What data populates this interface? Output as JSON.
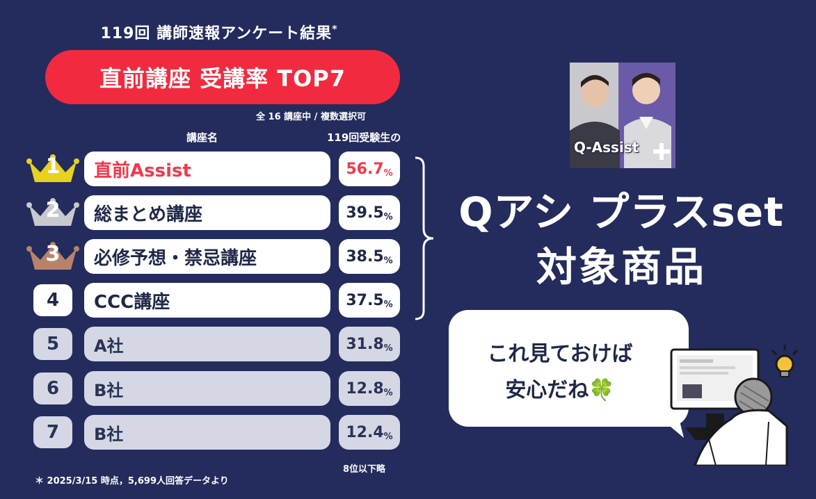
{
  "header": {
    "survey_title": "119回 講師速報アンケート結果",
    "asterisk": "*",
    "main_title": "直前講座 受講率 TOP7",
    "subnote": "全 16 講座中 / 複数選択可",
    "col_name": "講座名",
    "col_rate": "119回受験生の"
  },
  "ranking": [
    {
      "rank": "1",
      "name": "直前Assist",
      "rate": "56.7",
      "unit": "%"
    },
    {
      "rank": "2",
      "name": "総まとめ講座",
      "rate": "39.5",
      "unit": "%"
    },
    {
      "rank": "3",
      "name": "必修予想・禁忌講座",
      "rate": "38.5",
      "unit": "%"
    },
    {
      "rank": "4",
      "name": "CCC講座",
      "rate": "37.5",
      "unit": "%"
    },
    {
      "rank": "5",
      "name": "A社",
      "rate": "31.8",
      "unit": "%"
    },
    {
      "rank": "6",
      "name": "B社",
      "rate": "12.8",
      "unit": "%"
    },
    {
      "rank": "7",
      "name": "B社",
      "rate": "12.4",
      "unit": "%"
    }
  ],
  "footer": {
    "footnote": "＊ 2025/3/15 時点，5,699人回答データより",
    "omit": "8位以下略"
  },
  "promo": {
    "product_label": "Q-Assist",
    "badge_text": "プラス",
    "headline_1": "Qアシ プラスset",
    "headline_2": "対象商品",
    "bubble_line_1": "これ見ておけば",
    "bubble_line_2": "安心だね",
    "bubble_emoji": "🍀"
  },
  "colors": {
    "background": "#232c5c",
    "accent_red": "#f22a3f",
    "gold": "#e8d21e",
    "silver": "#c7c9cc",
    "bronze": "#b8826a",
    "dim_row": "#d5d8e4"
  },
  "icons": [
    "crown-gold-icon",
    "crown-silver-icon",
    "crown-bronze-icon",
    "clover-icon",
    "lightbulb-icon"
  ]
}
